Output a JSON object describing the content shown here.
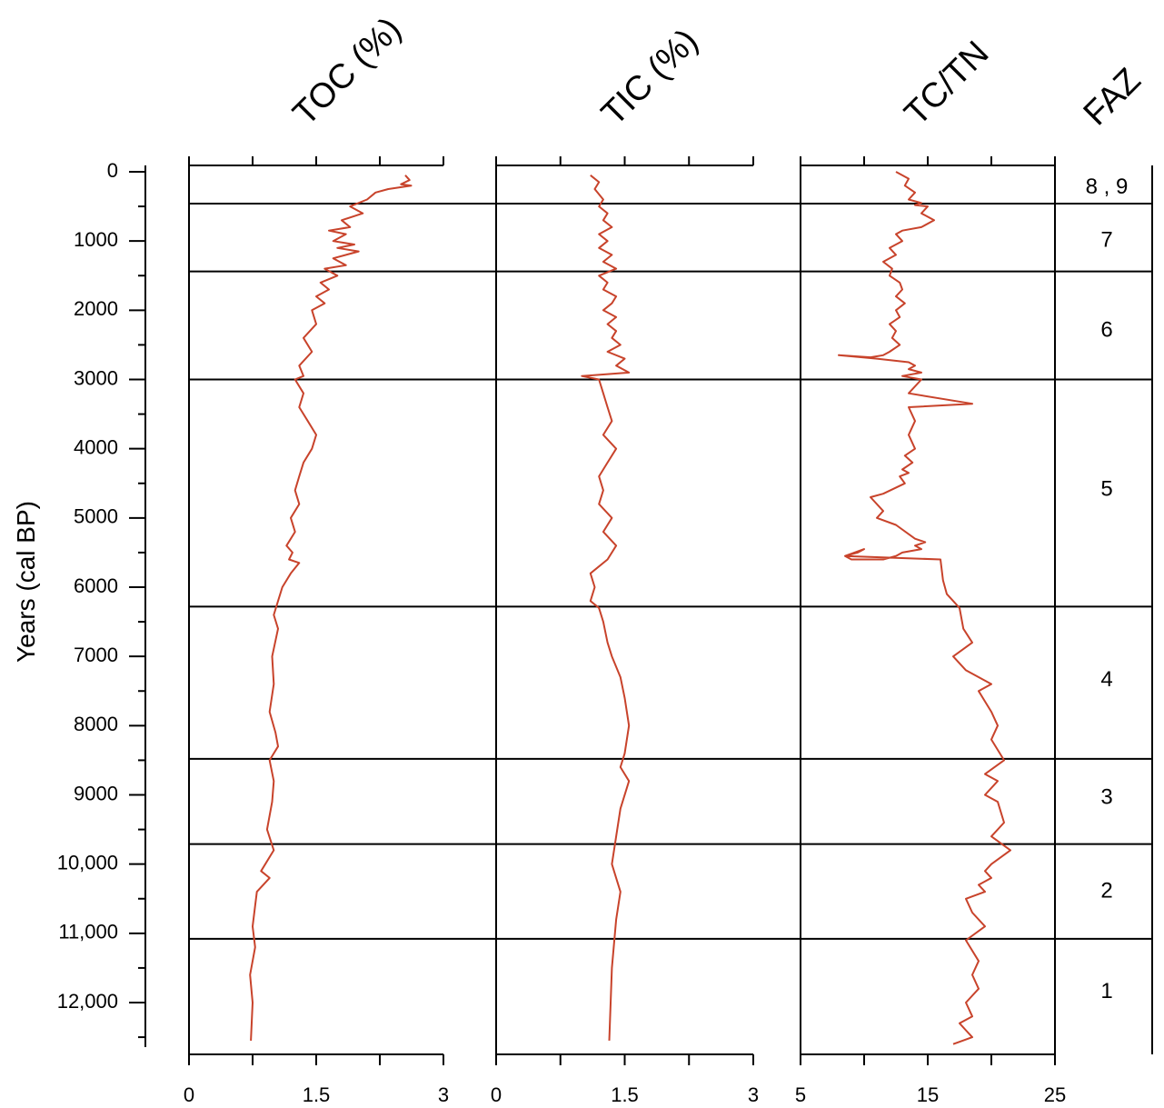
{
  "chart_data": {
    "type": "line",
    "ylabel": "Years (cal BP)",
    "y_reversed": true,
    "ylim": [
      0,
      12600
    ],
    "yticks": [
      {
        "value": 0,
        "label": "0"
      },
      {
        "value": 1000,
        "label": "1000"
      },
      {
        "value": 2000,
        "label": "2000"
      },
      {
        "value": 3000,
        "label": "3000"
      },
      {
        "value": 4000,
        "label": "4000"
      },
      {
        "value": 5000,
        "label": "5000"
      },
      {
        "value": 6000,
        "label": "6000"
      },
      {
        "value": 7000,
        "label": "7000"
      },
      {
        "value": 8000,
        "label": "8000"
      },
      {
        "value": 9000,
        "label": "9000"
      },
      {
        "value": 10000,
        "label": "10,000"
      },
      {
        "value": 11000,
        "label": "11,000"
      },
      {
        "value": 12000,
        "label": "12,000"
      }
    ],
    "panels": [
      {
        "title": "TOC (%)",
        "xlim": [
          0,
          3
        ],
        "xticks": [
          {
            "value": 0,
            "label": "0"
          },
          {
            "value": 1.5,
            "label": "1.5"
          },
          {
            "value": 3,
            "label": "3"
          }
        ],
        "x_minor_step": 0.75,
        "series": [
          {
            "x": [
              2.55,
              2.6,
              2.5,
              2.62,
              2.35,
              2.2,
              2.1,
              1.9,
              2.05,
              1.8,
              1.9,
              1.65,
              1.85,
              1.7,
              1.95,
              1.75,
              2.0,
              1.7,
              1.85,
              1.6,
              1.75,
              1.55,
              1.65,
              1.5,
              1.6,
              1.45,
              1.5,
              1.35,
              1.45,
              1.3,
              1.35,
              1.25,
              1.35,
              1.3,
              1.4,
              1.5,
              1.45,
              1.35,
              1.3,
              1.25,
              1.3,
              1.2,
              1.25,
              1.15,
              1.22,
              1.18,
              1.3,
              1.2,
              1.1,
              1.05,
              1.0,
              1.05,
              0.98,
              1.0,
              0.95,
              1.02,
              1.05,
              0.95,
              1.0,
              0.98,
              0.92,
              1.0,
              0.85,
              0.95,
              0.8,
              0.78,
              0.75,
              0.78,
              0.72,
              0.75,
              0.73
            ],
            "y": [
              50,
              120,
              180,
              200,
              250,
              300,
              400,
              500,
              600,
              700,
              800,
              850,
              900,
              1000,
              1050,
              1100,
              1150,
              1250,
              1350,
              1400,
              1500,
              1600,
              1700,
              1800,
              1900,
              2000,
              2200,
              2400,
              2600,
              2800,
              2950,
              3000,
              3200,
              3400,
              3600,
              3800,
              4000,
              4200,
              4400,
              4600,
              4800,
              5000,
              5200,
              5400,
              5500,
              5600,
              5650,
              5800,
              6000,
              6200,
              6400,
              6600,
              7000,
              7400,
              7800,
              8100,
              8300,
              8500,
              8800,
              9100,
              9500,
              9800,
              10100,
              10200,
              10400,
              10600,
              10900,
              11200,
              11600,
              12000,
              12550
            ]
          }
        ]
      },
      {
        "title": "TIC (%)",
        "xlim": [
          0,
          3
        ],
        "xticks": [
          {
            "value": 0,
            "label": "0"
          },
          {
            "value": 1.5,
            "label": "1.5"
          },
          {
            "value": 3,
            "label": "3"
          }
        ],
        "x_minor_step": 0.75,
        "series": [
          {
            "x": [
              1.1,
              1.2,
              1.15,
              1.25,
              1.2,
              1.3,
              1.25,
              1.35,
              1.2,
              1.3,
              1.2,
              1.35,
              1.25,
              1.4,
              1.2,
              1.3,
              1.25,
              1.4,
              1.35,
              1.25,
              1.4,
              1.3,
              1.4,
              1.35,
              1.45,
              1.3,
              1.5,
              1.4,
              1.55,
              1.0,
              1.2,
              1.25,
              1.3,
              1.35,
              1.25,
              1.4,
              1.3,
              1.2,
              1.25,
              1.2,
              1.35,
              1.25,
              1.4,
              1.3,
              1.1,
              1.15,
              1.1,
              1.2,
              1.25,
              1.3,
              1.35,
              1.45,
              1.5,
              1.55,
              1.5,
              1.45,
              1.55,
              1.45,
              1.4,
              1.35,
              1.4,
              1.45,
              1.4,
              1.35,
              1.32
            ],
            "y": [
              50,
              150,
              250,
              400,
              500,
              600,
              700,
              800,
              900,
              1000,
              1100,
              1200,
              1300,
              1400,
              1500,
              1600,
              1700,
              1800,
              1900,
              2000,
              2100,
              2200,
              2300,
              2400,
              2500,
              2600,
              2700,
              2800,
              2900,
              2950,
              3000,
              3200,
              3400,
              3600,
              3800,
              4000,
              4200,
              4400,
              4600,
              4800,
              5000,
              5200,
              5400,
              5600,
              5800,
              6000,
              6200,
              6300,
              6500,
              6800,
              7000,
              7300,
              7600,
              8000,
              8400,
              8600,
              8800,
              9200,
              9600,
              10000,
              10200,
              10400,
              10800,
              11500,
              12550
            ]
          }
        ]
      },
      {
        "title": "TC/TN",
        "xlim": [
          5,
          25
        ],
        "xticks": [
          {
            "value": 5,
            "label": "5"
          },
          {
            "value": 15,
            "label": "15"
          },
          {
            "value": 25,
            "label": "25"
          }
        ],
        "x_minor_step": 5,
        "series": [
          {
            "x": [
              12.5,
              13.5,
              13.2,
              14.0,
              13.5,
              14.5,
              14.0,
              15.0,
              14.5,
              15.5,
              14.5,
              13.0,
              12.5,
              13.0,
              12.0,
              12.5,
              11.5,
              12.2,
              12.0,
              12.8,
              13.0,
              12.5,
              13.2,
              12.5,
              12.8,
              12.0,
              12.5,
              12.2,
              12.8,
              12.0,
              11.5,
              10.5,
              8.0,
              11.0,
              13.5,
              14.0,
              13.5,
              14.5,
              13.0,
              14.5,
              13.5,
              18.5,
              13.5,
              14.0,
              13.5,
              14.0,
              13.2,
              13.8,
              13.0,
              13.5,
              12.8,
              13.2,
              11.5,
              10.5,
              11.5,
              11.0,
              12.5,
              14.0,
              14.8,
              14.0,
              14.5,
              13.0,
              12.5,
              11.5,
              9.0,
              8.5,
              9.5,
              10.0,
              8.5,
              16.0,
              16.2,
              16.5,
              17.0,
              17.5,
              17.8,
              18.5,
              17.0,
              17.5,
              18.0,
              19.0,
              20.0,
              19.0,
              20.0,
              20.5,
              20.0,
              21.0,
              19.5,
              20.5,
              19.5,
              20.5,
              21.0,
              20.0,
              21.5,
              20.0,
              19.5,
              20.0,
              19.0,
              19.5,
              18.0,
              18.5,
              19.5,
              18.0,
              19.0,
              18.5,
              19.0,
              18.0,
              18.5,
              17.5,
              18.0,
              18.5,
              17.0
            ],
            "y": [
              0,
              100,
              200,
              300,
              400,
              450,
              480,
              500,
              600,
              700,
              800,
              850,
              900,
              1000,
              1100,
              1200,
              1300,
              1400,
              1500,
              1600,
              1700,
              1800,
              1900,
              2000,
              2100,
              2200,
              2300,
              2400,
              2500,
              2600,
              2650,
              2680,
              2650,
              2700,
              2750,
              2800,
              2850,
              2900,
              2950,
              3000,
              3200,
              3350,
              3400,
              3600,
              3800,
              4000,
              4100,
              4200,
              4300,
              4350,
              4400,
              4500,
              4650,
              4700,
              4900,
              5000,
              5100,
              5300,
              5350,
              5400,
              5450,
              5500,
              5550,
              5600,
              5600,
              5550,
              5500,
              5450,
              5550,
              5600,
              5900,
              6100,
              6200,
              6300,
              6600,
              6800,
              7000,
              7100,
              7200,
              7300,
              7400,
              7500,
              7800,
              8000,
              8200,
              8500,
              8700,
              8800,
              9000,
              9100,
              9400,
              9600,
              9800,
              10000,
              10100,
              10200,
              10300,
              10400,
              10500,
              10700,
              10900,
              11100,
              11400,
              11600,
              11800,
              12000,
              12200,
              12300,
              12400,
              12500,
              12600
            ]
          }
        ]
      }
    ],
    "zones": {
      "title": "FAZ",
      "boundaries": [
        460,
        1440,
        3000,
        6280,
        8480,
        9710,
        11080
      ],
      "labels": [
        {
          "label": "8 , 9",
          "center": 230
        },
        {
          "label": "7",
          "center": 1000
        },
        {
          "label": "6",
          "center": 2300
        },
        {
          "label": "5",
          "center": 4600
        },
        {
          "label": "4",
          "center": 7350
        },
        {
          "label": "3",
          "center": 9050
        },
        {
          "label": "2",
          "center": 10400
        },
        {
          "label": "1",
          "center": 11850
        }
      ]
    }
  }
}
